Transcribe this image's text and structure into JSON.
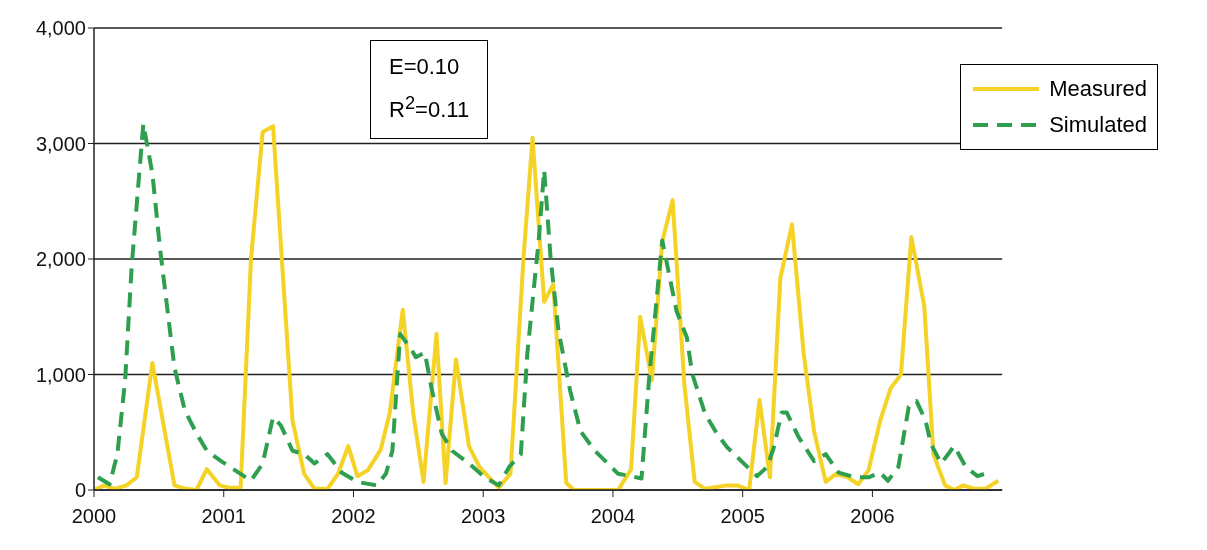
{
  "chart_data": {
    "type": "line",
    "xlim": [
      2000,
      2007
    ],
    "xticks": [
      2000,
      2001,
      2002,
      2003,
      2004,
      2005,
      2006
    ],
    "ylim": [
      0,
      4000
    ],
    "yticks": [
      0,
      {
        "value": 1000,
        "label": "1,000"
      },
      {
        "value": 2000,
        "label": "2,000"
      },
      {
        "value": 3000,
        "label": "3,000"
      },
      {
        "value": 4000,
        "label": "4,000"
      }
    ],
    "grid": "y",
    "legend": "top right",
    "marker": "none",
    "annotations": [
      "E=0.10",
      "R$^{2}$=0.11"
    ],
    "series": [
      {
        "name": "Measured",
        "color": "#f5d226",
        "line_style": "solid",
        "x": [
          2000.0,
          2000.08,
          2000.16,
          2000.25,
          2000.33,
          2000.45,
          2000.62,
          2000.71,
          2000.79,
          2000.87,
          2000.97,
          2001.04,
          2001.13,
          2001.21,
          2001.3,
          2001.38,
          2001.53,
          2001.62,
          2001.7,
          2001.8,
          2001.88,
          2001.96,
          2002.03,
          2002.11,
          2002.21,
          2002.28,
          2002.38,
          2002.46,
          2002.54,
          2002.64,
          2002.71,
          2002.79,
          2002.89,
          2002.97,
          2003.12,
          2003.21,
          2003.31,
          2003.38,
          2003.47,
          2003.54,
          2003.64,
          2003.7,
          2004.04,
          2004.14,
          2004.21,
          2004.3,
          2004.38,
          2004.46,
          2004.55,
          2004.63,
          2004.71,
          2004.88,
          2004.96,
          2005.05,
          2005.13,
          2005.21,
          2005.29,
          2005.38,
          2005.47,
          2005.55,
          2005.64,
          2005.72,
          2005.81,
          2005.89,
          2005.97,
          2006.06,
          2006.14,
          2006.22,
          2006.3,
          2006.4,
          2006.47,
          2006.56,
          2006.63,
          2006.7,
          2006.79,
          2006.87,
          2006.97
        ],
        "values": [
          0,
          40,
          10,
          40,
          110,
          1100,
          40,
          10,
          0,
          180,
          40,
          20,
          20,
          2000,
          3100,
          3150,
          600,
          140,
          10,
          10,
          140,
          380,
          120,
          170,
          350,
          670,
          1560,
          670,
          70,
          1350,
          60,
          1130,
          380,
          200,
          20,
          140,
          2000,
          3050,
          1630,
          1780,
          60,
          0,
          0,
          180,
          1500,
          950,
          2150,
          2510,
          920,
          70,
          10,
          40,
          40,
          0,
          780,
          110,
          1830,
          2300,
          1180,
          510,
          70,
          140,
          110,
          50,
          170,
          600,
          880,
          1000,
          2190,
          1590,
          310,
          40,
          0,
          40,
          10,
          10,
          80
        ]
      },
      {
        "name": "Simulated",
        "color": "#2e9e4f",
        "line_style": "dashed",
        "x": [
          2000.03,
          2000.12,
          2000.18,
          2000.24,
          2000.29,
          2000.38,
          2000.45,
          2000.51,
          2000.62,
          2000.7,
          2000.79,
          2000.87,
          2000.98,
          2001.13,
          2001.21,
          2001.3,
          2001.38,
          2001.44,
          2001.53,
          2001.62,
          2001.7,
          2001.8,
          2001.91,
          2002.03,
          2002.18,
          2002.25,
          2002.3,
          2002.36,
          2002.45,
          2002.48,
          2002.55,
          2002.6,
          2002.68,
          2002.76,
          2002.89,
          2003.01,
          2003.12,
          2003.2,
          2003.29,
          2003.34,
          2003.43,
          2003.47,
          2003.52,
          2003.58,
          2003.67,
          2003.75,
          2003.86,
          2003.96,
          2004.04,
          2004.14,
          2004.22,
          2004.28,
          2004.38,
          2004.49,
          2004.57,
          2004.61,
          2004.71,
          2004.8,
          2004.88,
          2004.99,
          2005.11,
          2005.19,
          2005.24,
          2005.3,
          2005.34,
          2005.43,
          2005.55,
          2005.64,
          2005.74,
          2005.87,
          2005.97,
          2006.06,
          2006.12,
          2006.2,
          2006.28,
          2006.34,
          2006.41,
          2006.45,
          2006.53,
          2006.63,
          2006.72,
          2006.81,
          2006.89
        ],
        "values": [
          110,
          50,
          310,
          950,
          1930,
          3170,
          2740,
          2080,
          1060,
          690,
          490,
          340,
          250,
          140,
          80,
          230,
          630,
          560,
          340,
          310,
          230,
          310,
          150,
          70,
          40,
          140,
          340,
          1350,
          1210,
          1150,
          1190,
          890,
          490,
          340,
          230,
          110,
          40,
          200,
          310,
          1180,
          2190,
          2770,
          2000,
          1380,
          860,
          510,
          340,
          230,
          140,
          120,
          100,
          980,
          2160,
          1550,
          1320,
          1010,
          660,
          490,
          370,
          250,
          120,
          200,
          370,
          670,
          670,
          460,
          250,
          310,
          150,
          110,
          110,
          150,
          80,
          200,
          720,
          770,
          600,
          400,
          230,
          380,
          200,
          120,
          150
        ]
      }
    ]
  }
}
